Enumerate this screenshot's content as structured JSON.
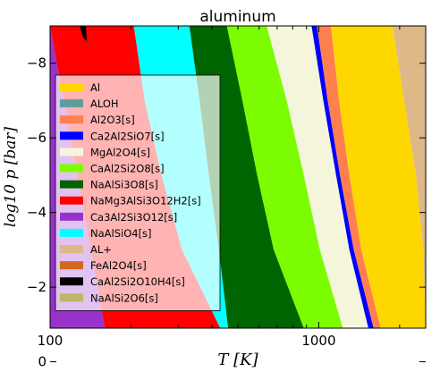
{
  "chart_data": {
    "type": "area",
    "title": "aluminum",
    "xlabel": "T [K]",
    "ylabel": "log10 p [bar]",
    "x_scale": "log",
    "xlim": [
      100,
      2500
    ],
    "ylim": [
      -0.9,
      -9.0
    ],
    "y_inverted": true,
    "x_ticks": [
      100,
      1000
    ],
    "x_tick_labels": [
      "100",
      "1000"
    ],
    "y_ticks": [
      -8,
      -6,
      -4,
      -2,
      0
    ],
    "y_tick_labels": [
      "−8",
      "−6",
      "−4",
      "−2",
      "0"
    ],
    "legend_position": "left",
    "grid": false,
    "legend": [
      {
        "label": "Al",
        "color": "#FFD700"
      },
      {
        "label": "ALOH",
        "color": "#5F9EA0"
      },
      {
        "label": "Al2O3[s]",
        "color": "#FF7F50"
      },
      {
        "label": "Ca2Al2SiO7[s]",
        "color": "#0000FF"
      },
      {
        "label": "MgAl2O4[s]",
        "color": "#F5F5DC"
      },
      {
        "label": "CaAl2Si2O8[s]",
        "color": "#7CFC00"
      },
      {
        "label": "NaAlSi3O8[s]",
        "color": "#006400"
      },
      {
        "label": "NaMg3AlSi3O12H2[s]",
        "color": "#FF0000"
      },
      {
        "label": "Ca3Al2Si3O12[s]",
        "color": "#9932CC"
      },
      {
        "label": "NaAlSiO4[s]",
        "color": "#00FFFF"
      },
      {
        "label": "AL+",
        "color": "#DEB887"
      },
      {
        "label": "FeAl2O4[s]",
        "color": "#D2691E"
      },
      {
        "label": "CaAl2Si2O10H4[s]",
        "color": "#000000"
      },
      {
        "label": "NaAlSi2O6[s]",
        "color": "#BDB76B"
      }
    ],
    "regions": [
      {
        "label": "Ca3Al2Si3O12[s]",
        "color": "#9932CC",
        "boundary_T": [
          [
            -9.0,
            100
          ],
          [
            -0.9,
            100
          ]
        ],
        "upper_T": [
          [
            -9.0,
            100
          ],
          [
            -0.9,
            160
          ]
        ]
      },
      {
        "label": "NaMg3AlSi3O12H2[s]",
        "color": "#FF0000",
        "boundary_T": [
          [
            -9.0,
            100
          ],
          [
            -0.9,
            160
          ]
        ],
        "upper_T": [
          [
            -9.0,
            205
          ],
          [
            -7.0,
            225
          ],
          [
            -5.0,
            260
          ],
          [
            -3.0,
            310
          ],
          [
            -0.9,
            430
          ]
        ]
      },
      {
        "label": "NaAlSiO4[s]",
        "color": "#00FFFF",
        "boundary_T": [
          [
            -9.0,
            205
          ],
          [
            -7.0,
            225
          ],
          [
            -5.0,
            260
          ],
          [
            -3.0,
            310
          ],
          [
            -0.9,
            430
          ]
        ],
        "upper_T": [
          [
            -9.0,
            330
          ],
          [
            -7.0,
            360
          ],
          [
            -5.0,
            390
          ],
          [
            -3.0,
            425
          ],
          [
            -0.9,
            460
          ]
        ]
      },
      {
        "label": "NaAlSi3O8[s]",
        "color": "#006400",
        "boundary_T": [
          [
            -9.0,
            330
          ],
          [
            -7.0,
            360
          ],
          [
            -5.0,
            390
          ],
          [
            -3.0,
            425
          ],
          [
            -0.9,
            460
          ]
        ],
        "upper_T": [
          [
            -9.0,
            455
          ],
          [
            -7.0,
            520
          ],
          [
            -5.0,
            590
          ],
          [
            -3.0,
            680
          ],
          [
            -0.9,
            880
          ]
        ]
      },
      {
        "label": "CaAl2Si2O8[s]",
        "color": "#7CFC00",
        "boundary_T": [
          [
            -9.0,
            455
          ],
          [
            -7.0,
            520
          ],
          [
            -5.0,
            590
          ],
          [
            -3.0,
            680
          ],
          [
            -0.9,
            880
          ]
        ],
        "upper_T": [
          [
            -9.0,
            640
          ],
          [
            -7.0,
            760
          ],
          [
            -5.0,
            880
          ],
          [
            -3.0,
            1010
          ],
          [
            -0.9,
            1230
          ]
        ]
      },
      {
        "label": "MgAl2O4[s]",
        "color": "#F5F5DC",
        "boundary_T": [
          [
            -9.0,
            640
          ],
          [
            -7.0,
            760
          ],
          [
            -5.0,
            880
          ],
          [
            -3.0,
            1010
          ],
          [
            -0.9,
            1230
          ]
        ],
        "upper_T": [
          [
            -9.0,
            940
          ],
          [
            -7.0,
            1040
          ],
          [
            -5.0,
            1160
          ],
          [
            -3.0,
            1300
          ],
          [
            -0.9,
            1530
          ]
        ]
      },
      {
        "label": "Ca2Al2SiO7[s]",
        "color": "#0000FF",
        "boundary_T": [
          [
            -9.0,
            940
          ],
          [
            -7.0,
            1040
          ],
          [
            -5.0,
            1160
          ],
          [
            -3.0,
            1300
          ],
          [
            -0.9,
            1530
          ]
        ],
        "upper_T": [
          [
            -9.0,
            985
          ],
          [
            -7.0,
            1080
          ],
          [
            -5.0,
            1200
          ],
          [
            -3.0,
            1350
          ],
          [
            -0.9,
            1600
          ]
        ]
      },
      {
        "label": "Al2O3[s]",
        "color": "#FF7F50",
        "boundary_T": [
          [
            -9.0,
            985
          ],
          [
            -7.0,
            1080
          ],
          [
            -5.0,
            1200
          ],
          [
            -3.0,
            1350
          ],
          [
            -0.9,
            1600
          ]
        ],
        "upper_T": [
          [
            -9.0,
            1110
          ],
          [
            -7.0,
            1190
          ],
          [
            -5.0,
            1300
          ],
          [
            -3.0,
            1440
          ],
          [
            -0.9,
            1700
          ]
        ]
      },
      {
        "label": "Al",
        "color": "#FFD700",
        "boundary_T": [
          [
            -9.0,
            1110
          ],
          [
            -7.0,
            1190
          ],
          [
            -5.0,
            1300
          ],
          [
            -3.0,
            1440
          ],
          [
            -0.9,
            1700
          ]
        ],
        "upper_T": [
          [
            -9.0,
            1880
          ],
          [
            -7.0,
            2080
          ],
          [
            -5.0,
            2300
          ],
          [
            -3.0,
            2450
          ],
          [
            -0.9,
            2500
          ]
        ]
      },
      {
        "label": "AL+",
        "color": "#DEB887",
        "boundary_T": [
          [
            -9.0,
            1880
          ],
          [
            -7.0,
            2080
          ],
          [
            -5.0,
            2300
          ],
          [
            -3.0,
            2450
          ],
          [
            -0.9,
            2500
          ]
        ],
        "upper_T": [
          [
            -9.0,
            2500
          ],
          [
            -0.9,
            2500
          ]
        ]
      }
    ]
  }
}
